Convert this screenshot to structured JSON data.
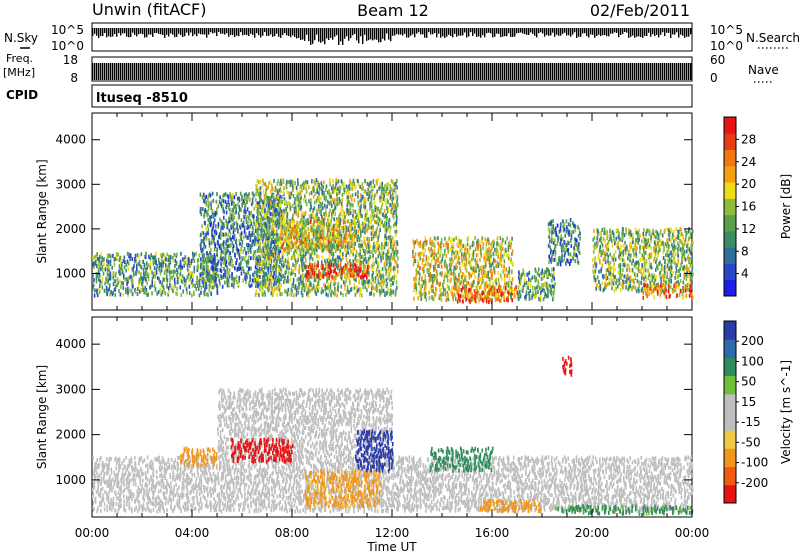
{
  "header": {
    "station": "Unwin (fitACF)",
    "beam": "Beam 12",
    "date": "02/Feb/2011"
  },
  "strip": {
    "nsky_label": "N.Sky",
    "nsearch_label": "N.Search",
    "nsky_ticks": [
      "10^5",
      "10^0"
    ],
    "nsearch_ticks": [
      "10^5",
      "10^0"
    ],
    "freq_label_top": "Freq.",
    "freq_label_unit": "[MHz]",
    "freq_ticks": [
      "18",
      "8"
    ],
    "nave_label": "Nave",
    "nave_ticks": [
      "60",
      "0"
    ],
    "cpid_label": "CPID",
    "cpid_value": "ltuseq -8510"
  },
  "chart_data": [
    {
      "type": "heatmap",
      "name": "power",
      "ylabel": "Slant Range [km]",
      "xlabel": "Time UT",
      "ylim": [
        180,
        4600
      ],
      "yticks": [
        "1000",
        "2000",
        "3000",
        "4000"
      ],
      "xticks": [
        "00:00",
        "04:00",
        "08:00",
        "12:00",
        "16:00",
        "20:00",
        "00:00"
      ],
      "colorbar": {
        "label": "Power [dB]",
        "ticks": [
          "4",
          "8",
          "12",
          "16",
          "20",
          "24",
          "28"
        ],
        "colors": [
          "#1e1ee6",
          "#2846c8",
          "#2e6e9a",
          "#3c8c64",
          "#5aa04a",
          "#8cbe3c",
          "#f0dc14",
          "#f5a014",
          "#f07814",
          "#e63c14",
          "#e61414"
        ]
      },
      "regions": [
        {
          "t": [
            0.0,
            5.0
          ],
          "r": [
            500,
            1450
          ],
          "level": 0.35
        },
        {
          "t": [
            4.3,
            7.5
          ],
          "r": [
            700,
            2800
          ],
          "level": 0.3
        },
        {
          "t": [
            6.5,
            12.2
          ],
          "r": [
            500,
            3100
          ],
          "level": 0.45
        },
        {
          "t": [
            8.5,
            11.0
          ],
          "r": [
            900,
            1200
          ],
          "level": 0.9
        },
        {
          "t": [
            7.5,
            10.5
          ],
          "r": [
            1500,
            2200
          ],
          "level": 0.6
        },
        {
          "t": [
            12.8,
            16.8
          ],
          "r": [
            400,
            1800
          ],
          "level": 0.55
        },
        {
          "t": [
            14.5,
            17.0
          ],
          "r": [
            350,
            700
          ],
          "level": 0.8
        },
        {
          "t": [
            17.0,
            18.5
          ],
          "r": [
            400,
            1100
          ],
          "level": 0.4
        },
        {
          "t": [
            18.2,
            19.5
          ],
          "r": [
            1200,
            2200
          ],
          "level": 0.3
        },
        {
          "t": [
            20.0,
            24.0
          ],
          "r": [
            600,
            2000
          ],
          "level": 0.45
        },
        {
          "t": [
            22.0,
            24.0
          ],
          "r": [
            450,
            750
          ],
          "level": 0.75
        }
      ]
    },
    {
      "type": "heatmap",
      "name": "velocity",
      "ylabel": "Slant Range [km]",
      "xlabel": "Time UT",
      "ylim": [
        180,
        4600
      ],
      "yticks": [
        "1000",
        "2000",
        "3000",
        "4000"
      ],
      "xticks": [
        "00:00",
        "04:00",
        "08:00",
        "12:00",
        "16:00",
        "20:00",
        "00:00"
      ],
      "colorbar": {
        "label": "Velocity [m s^-1]",
        "ticks": [
          "200",
          "100",
          "50",
          "15",
          "-15",
          "-50",
          "-100",
          "-200"
        ],
        "colors": [
          "#2a3ca8",
          "#2e6aa8",
          "#2e8c5a",
          "#6ec03c",
          "#bebebe",
          "#bebebe",
          "#f0c846",
          "#f0961e",
          "#f05a14",
          "#e61414"
        ]
      },
      "regions": [
        {
          "t": [
            0.0,
            24.0
          ],
          "r": [
            300,
            1500
          ],
          "v": 0
        },
        {
          "t": [
            5.0,
            12.0
          ],
          "r": [
            1500,
            3000
          ],
          "v": 0
        },
        {
          "t": [
            3.5,
            5.0
          ],
          "r": [
            1300,
            1700
          ],
          "v": -60
        },
        {
          "t": [
            5.5,
            8.0
          ],
          "r": [
            1400,
            1900
          ],
          "v": -190
        },
        {
          "t": [
            8.5,
            11.5
          ],
          "r": [
            400,
            1200
          ],
          "v": -40
        },
        {
          "t": [
            10.5,
            12.0
          ],
          "r": [
            1200,
            2100
          ],
          "v": 180
        },
        {
          "t": [
            13.5,
            16.0
          ],
          "r": [
            1200,
            1700
          ],
          "v": 60
        },
        {
          "t": [
            15.5,
            18.0
          ],
          "r": [
            300,
            550
          ],
          "v": -50
        },
        {
          "t": [
            18.5,
            24.0
          ],
          "r": [
            250,
            420
          ],
          "v": 40
        },
        {
          "t": [
            18.8,
            19.2
          ],
          "r": [
            3300,
            3700
          ],
          "v": -170
        }
      ]
    }
  ]
}
